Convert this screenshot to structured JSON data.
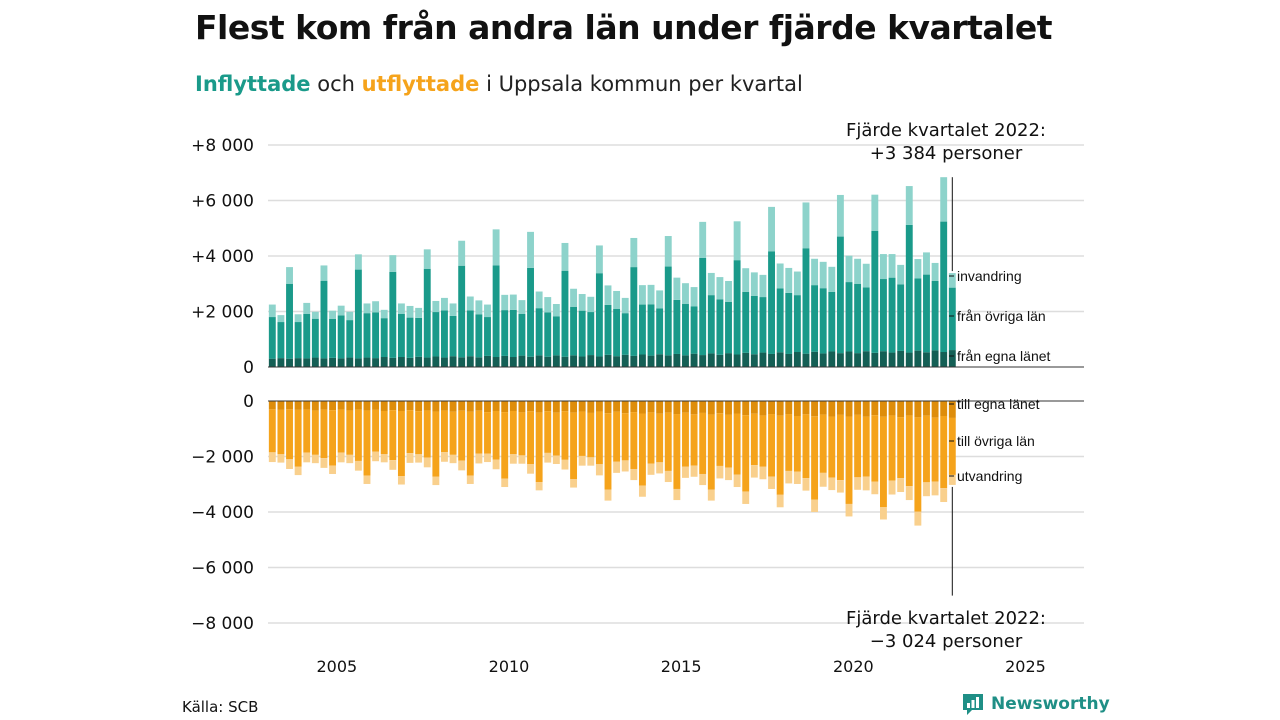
{
  "title": "Flest kom från andra län under fjärde kvartalet",
  "subtitle": {
    "in_word": "Inflyttade",
    "mid": " och ",
    "out_word": "utflyttade",
    "rest": " i Uppsala kommun per kvartal"
  },
  "source": "Källa: SCB",
  "brand": "Newsworthy",
  "colors": {
    "in_total": "#8dd3cb",
    "in_other": "#1a9a8a",
    "in_own": "#145f55",
    "out_own": "#de8d0b",
    "out_other": "#f5a31b",
    "out_total": "#f9d08d",
    "grid": "#dddddd",
    "brand": "#1f8f86"
  },
  "chart_data": {
    "type": "bar",
    "stacked": true,
    "x_axis": {
      "ticks": [
        2005,
        2010,
        2015,
        2020,
        2025
      ],
      "range": [
        2003.0,
        2026.7
      ]
    },
    "y_axis_upper": {
      "ticks": [
        0,
        2000,
        4000,
        6000,
        8000
      ],
      "tick_labels": [
        "0",
        "+2 000",
        "+4 000",
        "+6 000",
        "+8 000"
      ],
      "range": [
        0,
        8000
      ]
    },
    "y_axis_lower": {
      "ticks": [
        0,
        -2000,
        -4000,
        -6000,
        -8000
      ],
      "tick_labels": [
        "0",
        "−2 000",
        "−4 000",
        "−6 000",
        "−8 000"
      ],
      "range": [
        -8000,
        0
      ]
    },
    "grid": true,
    "first_quarter": "2003 Q1",
    "quarters_count": 80,
    "series_in": [
      {
        "name": "från egna länet",
        "values": [
          300,
          320,
          300,
          320,
          310,
          340,
          310,
          330,
          310,
          340,
          310,
          340,
          320,
          360,
          330,
          360,
          330,
          370,
          340,
          380,
          340,
          390,
          350,
          390,
          350,
          400,
          360,
          400,
          360,
          410,
          370,
          420,
          370,
          420,
          370,
          420,
          380,
          430,
          380,
          440,
          390,
          440,
          400,
          450,
          410,
          460,
          420,
          470,
          420,
          480,
          430,
          490,
          440,
          500,
          450,
          510,
          460,
          520,
          470,
          530,
          470,
          540,
          480,
          550,
          490,
          560,
          500,
          560,
          500,
          570,
          510,
          570,
          520,
          580,
          520,
          590,
          530,
          600,
          540,
          610
        ]
      },
      {
        "name": "från övriga län",
        "values": [
          1500,
          1300,
          2700,
          1300,
          1600,
          1400,
          2800,
          1400,
          1550,
          1350,
          3200,
          1600,
          1650,
          1400,
          3100,
          1550,
          1450,
          1400,
          3200,
          1600,
          1700,
          1450,
          3300,
          1650,
          1550,
          1400,
          3300,
          1650,
          1700,
          1500,
          3200,
          1700,
          1600,
          1400,
          3100,
          1750,
          1650,
          1550,
          3000,
          1800,
          1700,
          1500,
          3200,
          1800,
          1850,
          1650,
          3200,
          1950,
          1850,
          1700,
          3500,
          2100,
          2000,
          1850,
          3400,
          2200,
          2100,
          2000,
          3700,
          2300,
          2200,
          2050,
          3800,
          2400,
          2350,
          2150,
          4200,
          2500,
          2500,
          2300,
          4400,
          2600,
          2700,
          2400,
          4600,
          2600,
          2800,
          2500,
          4700,
          2250
        ]
      },
      {
        "name": "invandring",
        "values": [
          450,
          250,
          600,
          280,
          400,
          250,
          550,
          300,
          350,
          300,
          550,
          350,
          400,
          300,
          600,
          380,
          420,
          360,
          700,
          400,
          450,
          450,
          900,
          500,
          500,
          450,
          1300,
          550,
          550,
          500,
          1300,
          600,
          550,
          450,
          1000,
          650,
          600,
          550,
          1000,
          700,
          650,
          550,
          1050,
          700,
          700,
          650,
          1100,
          800,
          750,
          700,
          1300,
          800,
          800,
          750,
          1400,
          850,
          850,
          800,
          1600,
          900,
          900,
          850,
          1650,
          950,
          950,
          900,
          1500,
          950,
          900,
          850,
          1300,
          900,
          850,
          700,
          1400,
          700,
          800,
          650,
          1600,
          524
        ]
      }
    ],
    "series_out": [
      {
        "name": "till egna länet",
        "values": [
          -300,
          -320,
          -300,
          -320,
          -310,
          -340,
          -310,
          -330,
          -310,
          -340,
          -310,
          -340,
          -320,
          -360,
          -330,
          -360,
          -330,
          -370,
          -340,
          -380,
          -340,
          -390,
          -350,
          -390,
          -350,
          -400,
          -360,
          -400,
          -360,
          -410,
          -370,
          -420,
          -370,
          -420,
          -370,
          -420,
          -380,
          -430,
          -380,
          -440,
          -390,
          -440,
          -400,
          -450,
          -410,
          -460,
          -420,
          -470,
          -420,
          -480,
          -430,
          -490,
          -440,
          -500,
          -450,
          -510,
          -460,
          -520,
          -470,
          -530,
          -470,
          -540,
          -480,
          -550,
          -490,
          -560,
          -500,
          -560,
          -500,
          -570,
          -510,
          -570,
          -520,
          -580,
          -520,
          -590,
          -530,
          -600,
          -540,
          -610
        ]
      },
      {
        "name": "till övriga län",
        "values": [
          -1550,
          -1600,
          -1800,
          -2050,
          -1550,
          -1600,
          -1750,
          -2000,
          -1550,
          -1600,
          -1850,
          -2350,
          -1500,
          -1550,
          -1800,
          -2350,
          -1550,
          -1550,
          -1700,
          -2350,
          -1500,
          -1550,
          -1800,
          -2300,
          -1550,
          -1500,
          -1750,
          -2400,
          -1550,
          -1550,
          -1900,
          -2500,
          -1500,
          -1550,
          -1750,
          -2400,
          -1600,
          -1600,
          -1900,
          -2750,
          -1800,
          -1700,
          -2050,
          -2600,
          -1850,
          -1750,
          -2100,
          -2700,
          -1950,
          -1850,
          -2200,
          -2700,
          -1900,
          -1900,
          -2200,
          -2750,
          -1850,
          -1850,
          -2250,
          -2850,
          -2050,
          -2000,
          -2300,
          -3000,
          -2100,
          -2200,
          -2350,
          -3150,
          -2250,
          -2150,
          -2400,
          -3250,
          -2350,
          -2200,
          -2550,
          -3400,
          -2400,
          -2300,
          -2600,
          -2054
        ]
      },
      {
        "name": "utvandring",
        "values": [
          -350,
          -300,
          -350,
          -300,
          -350,
          -300,
          -350,
          -300,
          -350,
          -300,
          -350,
          -300,
          -350,
          -300,
          -350,
          -300,
          -350,
          -300,
          -350,
          -300,
          -350,
          -300,
          -350,
          -300,
          -350,
          -300,
          -350,
          -300,
          -350,
          -300,
          -350,
          -300,
          -350,
          -300,
          -350,
          -300,
          -350,
          -300,
          -400,
          -400,
          -400,
          -400,
          -400,
          -400,
          -400,
          -400,
          -400,
          -400,
          -400,
          -400,
          -400,
          -400,
          -450,
          -450,
          -450,
          -450,
          -450,
          -450,
          -450,
          -450,
          -450,
          -450,
          -450,
          -450,
          -500,
          -450,
          -450,
          -450,
          -450,
          -500,
          -450,
          -450,
          -500,
          -500,
          -500,
          -500,
          -500,
          -500,
          -500,
          -360
        ]
      }
    ],
    "annotations": {
      "upper": {
        "line1": "Fjärde kvartalet 2022:",
        "line2": "+3 384 personer"
      },
      "lower": {
        "line1": "Fjärde kvartalet 2022:",
        "line2": "−3 024 personer"
      }
    },
    "legend_in": [
      "invandring",
      "från övriga län",
      "från egna länet"
    ],
    "legend_out": [
      "till egna länet",
      "till övriga län",
      "utvandring"
    ]
  }
}
